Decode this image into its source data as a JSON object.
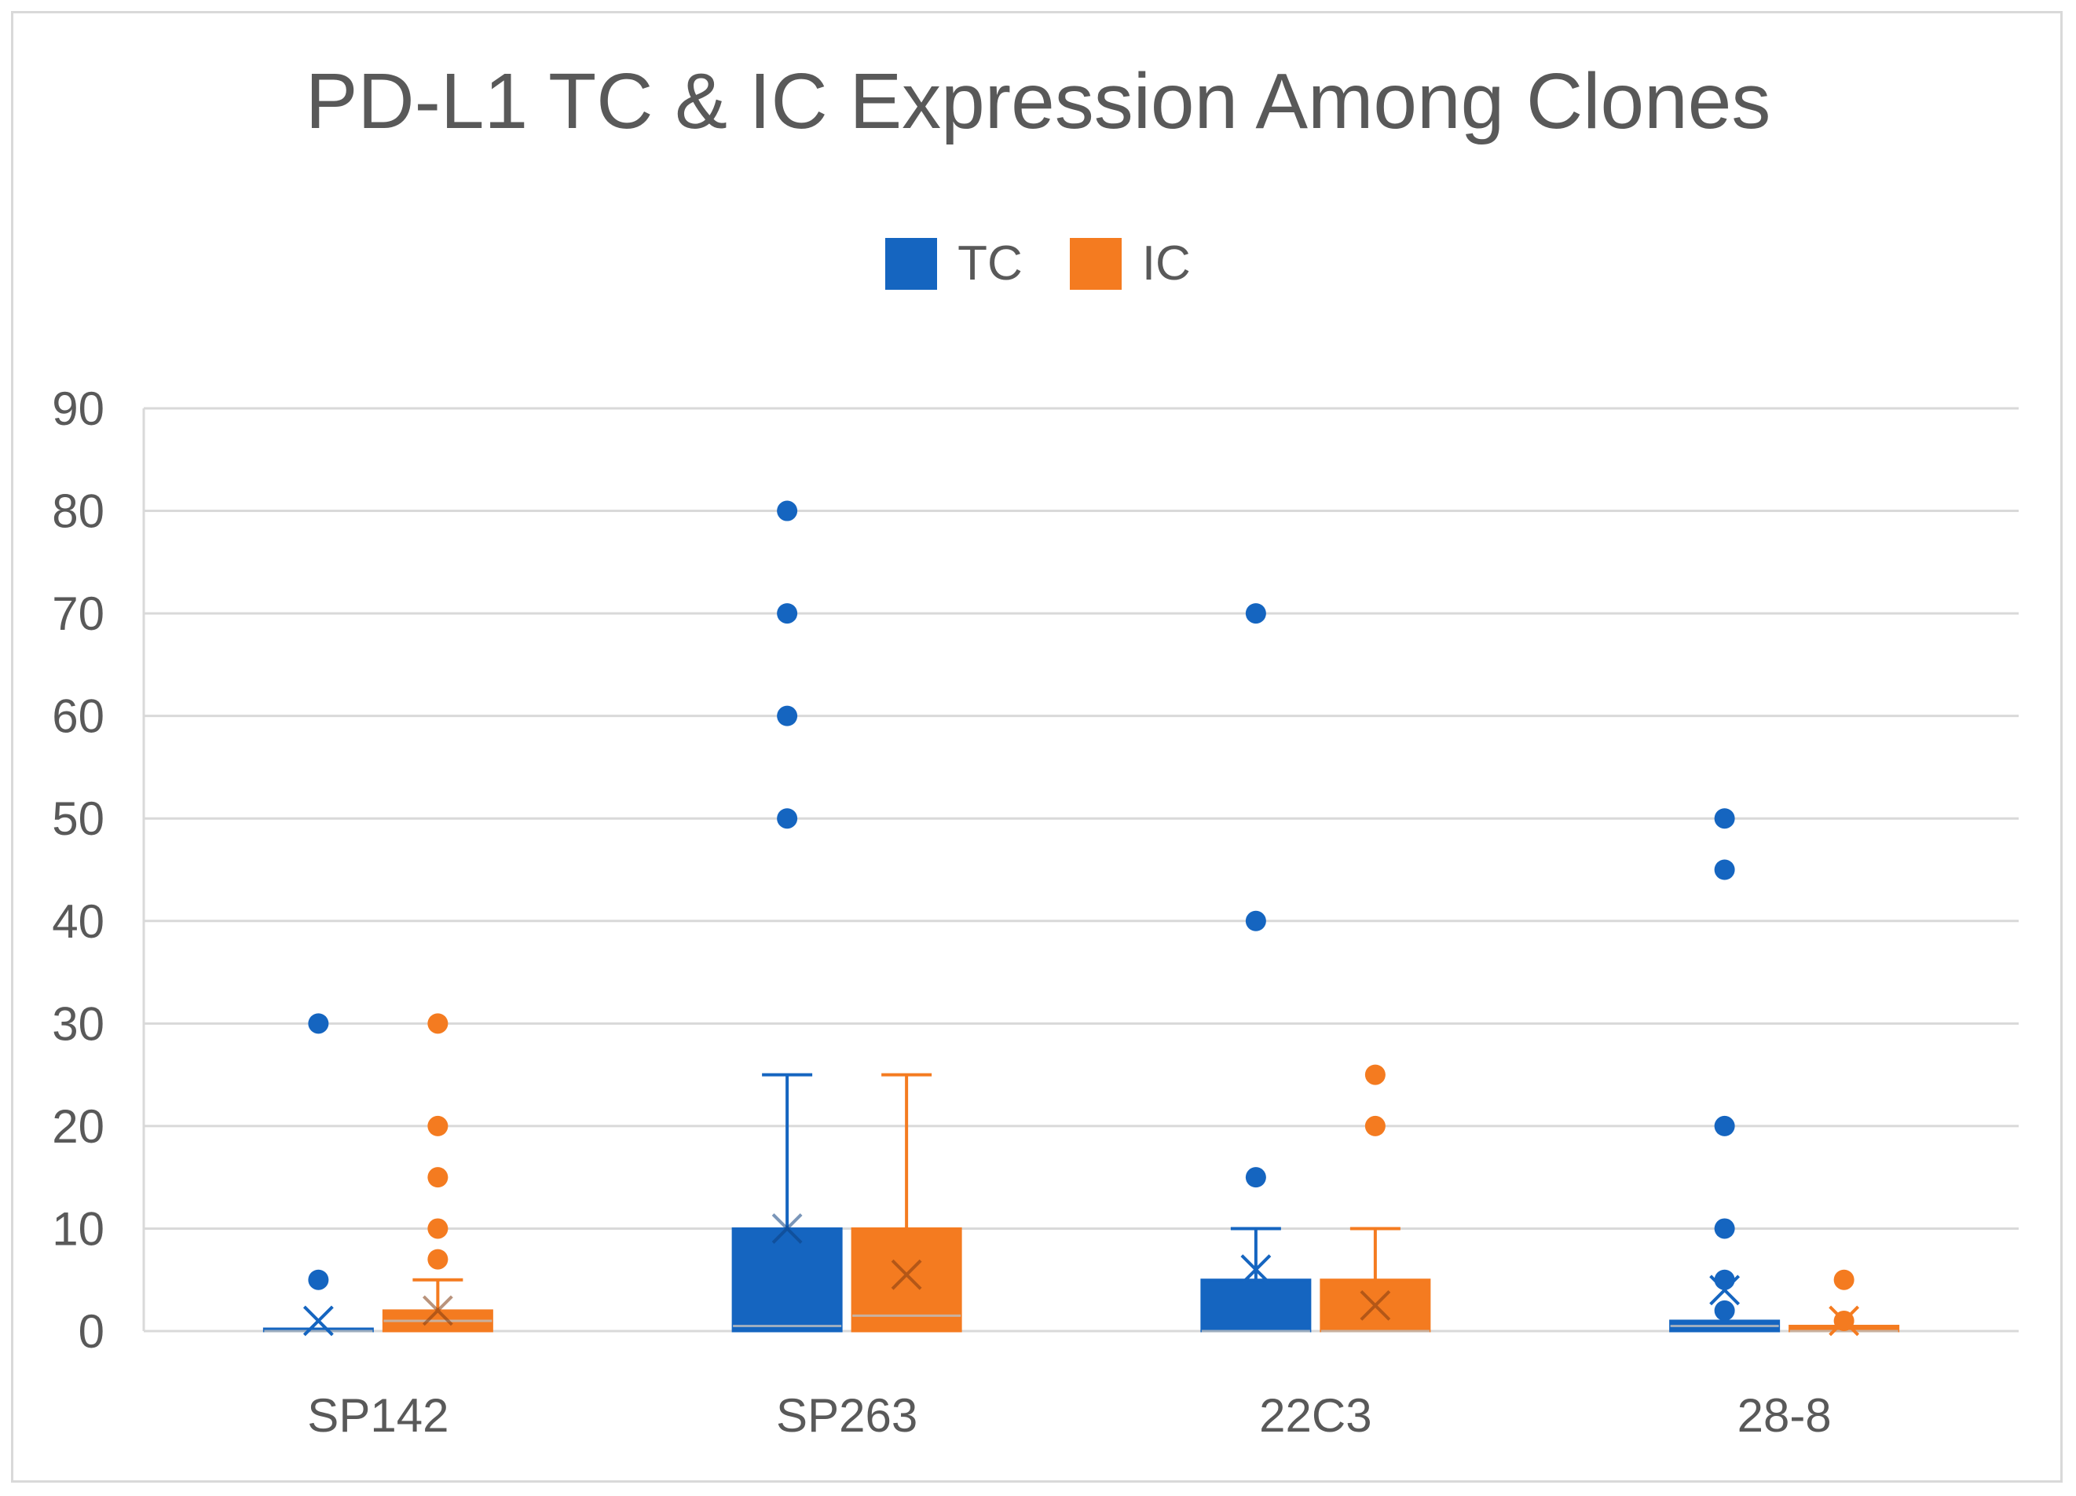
{
  "chart_data": {
    "type": "box",
    "title": "PD-L1 TC & IC Expression  Among Clones",
    "xlabel": "",
    "ylabel": "",
    "ylim": [
      0,
      90
    ],
    "yticks": [
      0,
      10,
      20,
      30,
      40,
      50,
      60,
      70,
      80,
      90
    ],
    "grid": true,
    "legend_position": "top-center",
    "categories": [
      "SP142",
      "SP263",
      "22C3",
      "28-8"
    ],
    "series": [
      {
        "name": "TC",
        "color": "#1565C0",
        "boxes": [
          {
            "category": "SP142",
            "min": 0,
            "q1": 0,
            "median": 0,
            "q3": 0,
            "max": 0,
            "mean": 1,
            "outliers": [
              5,
              30
            ]
          },
          {
            "category": "SP263",
            "min": 0,
            "q1": 0,
            "median": 0.5,
            "q3": 10,
            "max": 25,
            "mean": 10,
            "outliers": [
              50,
              60,
              70,
              80
            ]
          },
          {
            "category": "22C3",
            "min": 0,
            "q1": 0,
            "median": 0,
            "q3": 5,
            "max": 10,
            "mean": 6,
            "outliers": [
              15,
              40,
              70
            ]
          },
          {
            "category": "28-8",
            "min": 0,
            "q1": 0,
            "median": 0.5,
            "q3": 1,
            "max": 1,
            "mean": 4,
            "outliers": [
              2,
              5,
              10,
              20,
              45,
              50
            ]
          }
        ]
      },
      {
        "name": "IC",
        "color": "#F47B20",
        "boxes": [
          {
            "category": "SP142",
            "min": 0,
            "q1": 0,
            "median": 1,
            "q3": 2,
            "max": 5,
            "mean": 2,
            "outliers": [
              7,
              10,
              15,
              20,
              30
            ]
          },
          {
            "category": "SP263",
            "min": 0,
            "q1": 0,
            "median": 1.5,
            "q3": 10,
            "max": 25,
            "mean": 5.5,
            "outliers": []
          },
          {
            "category": "22C3",
            "min": 0,
            "q1": 0,
            "median": 0,
            "q3": 5,
            "max": 10,
            "mean": 2.5,
            "outliers": [
              20,
              25
            ]
          },
          {
            "category": "28-8",
            "min": 0,
            "q1": 0,
            "median": 0,
            "q3": 0.5,
            "max": 0.5,
            "mean": 1,
            "outliers": [
              1,
              5
            ]
          }
        ]
      }
    ]
  }
}
